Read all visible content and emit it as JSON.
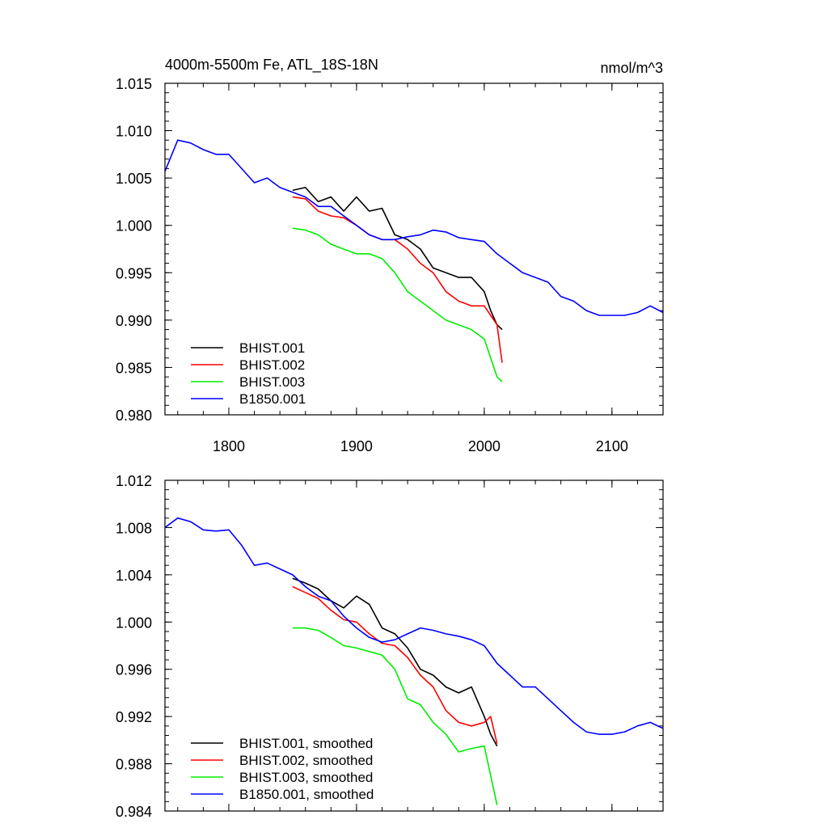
{
  "chart_data": [
    {
      "type": "line",
      "title": "4000m-5500m Fe, ATL_18S-18N",
      "units": "nmol/m^3",
      "xlim": [
        1750,
        2140
      ],
      "ylim": [
        0.98,
        1.015
      ],
      "yticks": [
        "1.015",
        "1.010",
        "1.005",
        "1.000",
        "0.995",
        "0.990",
        "0.985",
        "0.980"
      ],
      "xticks": [
        "1800",
        "1900",
        "2000",
        "2100"
      ],
      "legend_position": "bottom-left",
      "series": [
        {
          "name": "BHIST.001",
          "color": "#000000",
          "x": [
            1850,
            1860,
            1870,
            1880,
            1890,
            1900,
            1910,
            1920,
            1930,
            1940,
            1950,
            1960,
            1970,
            1980,
            1990,
            2000,
            2005,
            2010,
            2014
          ],
          "y": [
            1.0037,
            1.004,
            1.0025,
            1.003,
            1.0015,
            1.003,
            1.0015,
            1.0018,
            0.999,
            0.9985,
            0.9975,
            0.9955,
            0.995,
            0.9945,
            0.9945,
            0.993,
            0.991,
            0.9895,
            0.989
          ]
        },
        {
          "name": "BHIST.002",
          "color": "#ff0000",
          "x": [
            1850,
            1860,
            1870,
            1880,
            1890,
            1900,
            1910,
            1920,
            1930,
            1940,
            1950,
            1960,
            1970,
            1980,
            1990,
            2000,
            2005,
            2010,
            2014
          ],
          "y": [
            1.003,
            1.0028,
            1.0015,
            1.001,
            1.0008,
            1.0,
            0.999,
            0.9985,
            0.9985,
            0.9975,
            0.996,
            0.995,
            0.993,
            0.992,
            0.9915,
            0.9915,
            0.9905,
            0.9895,
            0.9855
          ]
        },
        {
          "name": "BHIST.003",
          "color": "#00ee00",
          "x": [
            1850,
            1860,
            1870,
            1880,
            1890,
            1900,
            1910,
            1920,
            1930,
            1940,
            1950,
            1960,
            1970,
            1980,
            1990,
            2000,
            2005,
            2010,
            2014
          ],
          "y": [
            0.9997,
            0.9995,
            0.999,
            0.998,
            0.9975,
            0.997,
            0.997,
            0.9965,
            0.995,
            0.993,
            0.992,
            0.991,
            0.99,
            0.9895,
            0.989,
            0.988,
            0.986,
            0.984,
            0.9835
          ]
        },
        {
          "name": "B1850.001",
          "color": "#0000ff",
          "x": [
            1750,
            1760,
            1770,
            1780,
            1790,
            1800,
            1810,
            1820,
            1830,
            1840,
            1850,
            1860,
            1870,
            1880,
            1890,
            1900,
            1910,
            1920,
            1930,
            1940,
            1950,
            1960,
            1970,
            1980,
            1990,
            2000,
            2010,
            2020,
            2030,
            2040,
            2050,
            2060,
            2070,
            2080,
            2090,
            2100,
            2110,
            2120,
            2130,
            2140
          ],
          "y": [
            1.0057,
            1.009,
            1.0087,
            1.008,
            1.0075,
            1.0075,
            1.006,
            1.0045,
            1.005,
            1.004,
            1.0035,
            1.003,
            1.002,
            1.002,
            1.001,
            1.0,
            0.999,
            0.9985,
            0.9985,
            0.9988,
            0.999,
            0.9995,
            0.9993,
            0.9987,
            0.9985,
            0.9983,
            0.997,
            0.996,
            0.995,
            0.9945,
            0.994,
            0.9925,
            0.992,
            0.991,
            0.9905,
            0.9905,
            0.9905,
            0.9908,
            0.9915,
            0.9908
          ]
        }
      ]
    },
    {
      "type": "line",
      "ylim": [
        0.984,
        1.012
      ],
      "xlim": [
        1750,
        2140
      ],
      "yticks": [
        "1.012",
        "1.008",
        "1.004",
        "1.000",
        "0.996",
        "0.992",
        "0.988",
        "0.984"
      ],
      "legend_position": "bottom-left",
      "series": [
        {
          "name": "BHIST.001, smoothed",
          "color": "#000000",
          "x": [
            1850,
            1860,
            1870,
            1880,
            1890,
            1900,
            1910,
            1920,
            1930,
            1940,
            1950,
            1960,
            1970,
            1980,
            1990,
            2000,
            2005,
            2010
          ],
          "y": [
            1.0037,
            1.0033,
            1.0028,
            1.0018,
            1.0012,
            1.0022,
            1.0015,
            0.9995,
            0.999,
            0.9978,
            0.996,
            0.9955,
            0.9945,
            0.994,
            0.9945,
            0.992,
            0.9905,
            0.9895
          ]
        },
        {
          "name": "BHIST.002, smoothed",
          "color": "#ff0000",
          "x": [
            1850,
            1860,
            1870,
            1880,
            1890,
            1900,
            1910,
            1920,
            1930,
            1940,
            1950,
            1960,
            1970,
            1980,
            1990,
            2000,
            2005,
            2010
          ],
          "y": [
            1.003,
            1.0025,
            1.002,
            1.001,
            1.0002,
            1.0,
            0.999,
            0.9982,
            0.998,
            0.997,
            0.9955,
            0.9945,
            0.9925,
            0.9915,
            0.9912,
            0.9915,
            0.992,
            0.9897
          ]
        },
        {
          "name": "BHIST.003, smoothed",
          "color": "#00ee00",
          "x": [
            1850,
            1860,
            1870,
            1880,
            1890,
            1900,
            1910,
            1920,
            1930,
            1940,
            1950,
            1960,
            1970,
            1980,
            1990,
            2000,
            2005,
            2010
          ],
          "y": [
            0.9995,
            0.9995,
            0.9993,
            0.9987,
            0.998,
            0.9978,
            0.9975,
            0.9972,
            0.996,
            0.9935,
            0.993,
            0.9915,
            0.9905,
            0.989,
            0.9893,
            0.9895,
            0.987,
            0.9845
          ]
        },
        {
          "name": "B1850.001, smoothed",
          "color": "#0000ff",
          "x": [
            1750,
            1760,
            1770,
            1780,
            1790,
            1800,
            1810,
            1820,
            1830,
            1840,
            1850,
            1860,
            1870,
            1880,
            1890,
            1900,
            1910,
            1920,
            1930,
            1940,
            1950,
            1960,
            1970,
            1980,
            1990,
            2000,
            2010,
            2020,
            2030,
            2040,
            2050,
            2060,
            2070,
            2080,
            2090,
            2100,
            2110,
            2120,
            2130,
            2140
          ],
          "y": [
            1.008,
            1.0088,
            1.0085,
            1.0078,
            1.0077,
            1.0078,
            1.0065,
            1.0048,
            1.005,
            1.0045,
            1.004,
            1.003,
            1.0022,
            1.0018,
            1.0005,
            0.9995,
            0.9987,
            0.9983,
            0.9985,
            0.999,
            0.9995,
            0.9993,
            0.999,
            0.9988,
            0.9985,
            0.998,
            0.9965,
            0.9955,
            0.9945,
            0.9945,
            0.9935,
            0.9925,
            0.9915,
            0.9907,
            0.9905,
            0.9905,
            0.9907,
            0.9912,
            0.9915,
            0.991
          ]
        }
      ]
    }
  ]
}
